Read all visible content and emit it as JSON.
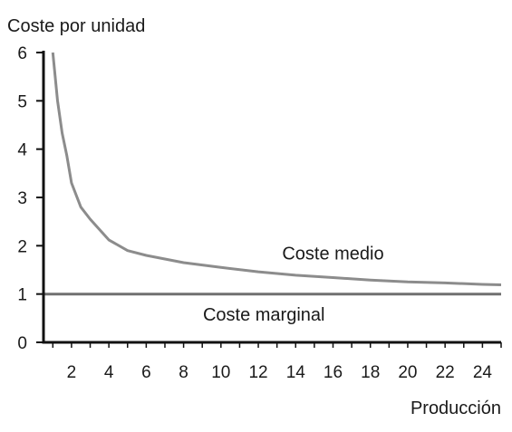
{
  "chart_data": {
    "type": "line",
    "ylabel": "Coste por unidad",
    "xlabel": "Producción",
    "xlim": [
      0.5,
      25
    ],
    "ylim": [
      0,
      6
    ],
    "x_ticks": [
      2,
      4,
      6,
      8,
      10,
      12,
      14,
      16,
      18,
      20,
      22,
      24
    ],
    "y_ticks": [
      0,
      1,
      2,
      3,
      4,
      5,
      6
    ],
    "grid": false,
    "legend": "none",
    "series": [
      {
        "name": "Coste medio",
        "color": "#8c8c8c",
        "points": [
          [
            1.0,
            6.0
          ],
          [
            1.25,
            5.0
          ],
          [
            1.5,
            4.33
          ],
          [
            1.75,
            3.86
          ],
          [
            2.0,
            3.3
          ],
          [
            2.5,
            2.8
          ],
          [
            3.0,
            2.55
          ],
          [
            4.0,
            2.12
          ],
          [
            5.0,
            1.9
          ],
          [
            6.0,
            1.8
          ],
          [
            8.0,
            1.65
          ],
          [
            10.0,
            1.55
          ],
          [
            12.0,
            1.46
          ],
          [
            14.0,
            1.39
          ],
          [
            16.0,
            1.34
          ],
          [
            18.0,
            1.29
          ],
          [
            20.0,
            1.25
          ],
          [
            22.0,
            1.23
          ],
          [
            24.0,
            1.2
          ],
          [
            25.0,
            1.19
          ]
        ]
      },
      {
        "name": "Coste marginal",
        "color": "#707070",
        "points": [
          [
            0.5,
            1.0
          ],
          [
            25.0,
            1.0
          ]
        ]
      }
    ]
  }
}
